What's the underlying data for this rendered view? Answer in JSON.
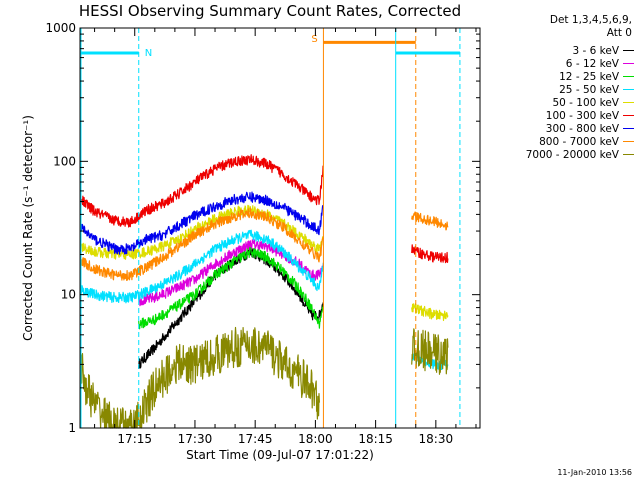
{
  "title": "HESSI Observing Summary Count Rates, Corrected",
  "footer": "11-Jan-2010 13:56",
  "legend_header": [
    "Det 1,3,4,5,6,9,",
    "Att 0"
  ],
  "chart_data": {
    "type": "line",
    "title": "HESSI Observing Summary Count Rates, Corrected",
    "xlabel": "Start Time (09-Jul-07 17:01:22)",
    "ylabel": "Corrected Count Rate (s⁻¹ detector⁻¹)",
    "y_scale": "log",
    "ylim": [
      1,
      1000
    ],
    "xlim": [
      "17:01:22",
      "18:41:00"
    ],
    "x_ticks": [
      "17:15",
      "17:30",
      "17:45",
      "18:00",
      "18:15",
      "18:30"
    ],
    "y_ticks": [
      "1",
      "10",
      "100",
      "1000"
    ],
    "grid": false,
    "legend_position": "right",
    "series": [
      {
        "name": "3 - 6 keV",
        "color": "#000000",
        "x": [
          "17:16",
          "17:20",
          "17:25",
          "17:30",
          "17:35",
          "17:40",
          "17:44",
          "17:48",
          "17:52",
          "17:56",
          "17:59",
          "18:01",
          "18:02"
        ],
        "values": [
          3,
          4,
          6,
          9,
          14,
          18,
          21,
          18,
          14,
          10,
          7,
          7,
          9
        ]
      },
      {
        "name": "6 - 12 keV",
        "color": "#dd00dd",
        "x": [
          "17:16",
          "17:20",
          "17:25",
          "17:30",
          "17:35",
          "17:40",
          "17:44",
          "17:48",
          "17:52",
          "17:56",
          "17:59",
          "18:01",
          "18:02"
        ],
        "values": [
          9,
          9.5,
          11,
          13,
          17,
          21,
          24,
          23,
          20,
          17,
          14,
          14,
          17
        ]
      },
      {
        "name": "12 - 25 keV",
        "color": "#00dd00",
        "x": [
          "17:16",
          "17:20",
          "17:25",
          "17:30",
          "17:35",
          "17:40",
          "17:44",
          "17:48",
          "17:52",
          "17:56",
          "17:59",
          "18:01",
          "18:02"
        ],
        "values": [
          6,
          6.5,
          8,
          10,
          14,
          18,
          21,
          19,
          15,
          11,
          8,
          6,
          8
        ]
      },
      {
        "name": "25 - 50 keV",
        "color": "#00e0ff",
        "x": [
          "17:01:30",
          "17:05",
          "17:10",
          "17:14",
          "17:18",
          "17:22",
          "17:26",
          "17:30",
          "17:35",
          "17:40",
          "17:44",
          "17:48",
          "17:52",
          "17:56",
          "17:59",
          "18:01",
          "18:02",
          "18:24",
          "18:27",
          "18:30",
          "18:33"
        ],
        "values": [
          11,
          10,
          9.5,
          9.5,
          10.5,
          12,
          14,
          17,
          22,
          26,
          28,
          26,
          21,
          16,
          13,
          11,
          18,
          3.5,
          3.2,
          3,
          3
        ]
      },
      {
        "name": "50 - 100 keV",
        "color": "#dddd00",
        "x": [
          "17:01:30",
          "17:05",
          "17:10",
          "17:14",
          "17:18",
          "17:22",
          "17:26",
          "17:30",
          "17:35",
          "17:40",
          "17:44",
          "17:48",
          "17:52",
          "17:56",
          "17:59",
          "18:01",
          "18:02",
          "18:24",
          "18:27",
          "18:30",
          "18:33"
        ],
        "values": [
          23,
          21,
          20,
          20,
          21,
          23,
          26,
          31,
          37,
          42,
          43,
          40,
          34,
          28,
          24,
          22,
          28,
          8,
          7.5,
          7,
          7
        ]
      },
      {
        "name": "100 - 300 keV",
        "color": "#ee0000",
        "x": [
          "17:01:30",
          "17:05",
          "17:10",
          "17:14",
          "17:18",
          "17:22",
          "17:26",
          "17:30",
          "17:35",
          "17:40",
          "17:44",
          "17:48",
          "17:52",
          "17:56",
          "17:59",
          "18:01",
          "18:02",
          "18:24",
          "18:27",
          "18:30",
          "18:33"
        ],
        "values": [
          52,
          42,
          36,
          35,
          43,
          48,
          57,
          70,
          88,
          100,
          103,
          95,
          80,
          64,
          54,
          50,
          95,
          22,
          20,
          19,
          19
        ]
      },
      {
        "name": "300 - 800 keV",
        "color": "#0000ee",
        "x": [
          "17:01:30",
          "17:05",
          "17:10",
          "17:14",
          "17:18",
          "17:22",
          "17:26",
          "17:30",
          "17:35",
          "17:40",
          "17:44",
          "17:48",
          "17:52",
          "17:56",
          "17:59",
          "18:01",
          "18:02"
        ],
        "values": [
          32,
          26,
          22,
          22,
          26,
          28,
          33,
          39,
          46,
          52,
          54,
          51,
          45,
          38,
          33,
          30,
          50
        ]
      },
      {
        "name": "800 - 7000 keV",
        "color": "#ff8800",
        "x": [
          "17:01:30",
          "17:05",
          "17:10",
          "17:14",
          "17:18",
          "17:22",
          "17:26",
          "17:30",
          "17:35",
          "17:40",
          "17:44",
          "17:48",
          "17:52",
          "17:56",
          "17:59",
          "18:01",
          "18:02",
          "18:24",
          "18:27",
          "18:30",
          "18:33"
        ],
        "values": [
          18,
          15.5,
          14,
          14,
          16,
          19,
          23,
          28,
          34,
          39,
          41,
          38,
          32,
          25,
          21,
          19,
          26,
          39,
          37,
          35,
          33
        ]
      },
      {
        "name": "7000 - 20000 keV",
        "color": "#888800",
        "x": [
          "17:01:30",
          "17:03",
          "17:05",
          "17:10",
          "17:15",
          "17:20",
          "17:25",
          "17:30",
          "17:35",
          "17:40",
          "17:44",
          "17:48",
          "17:52",
          "17:56",
          "17:59",
          "18:01",
          "18:24",
          "18:27",
          "18:30",
          "18:33"
        ],
        "values": [
          3,
          2,
          1.5,
          1,
          1,
          2,
          3,
          3,
          3.5,
          4,
          4.2,
          4,
          3,
          2.5,
          2,
          1.5,
          4,
          3.8,
          3.6,
          3.5
        ]
      }
    ],
    "annotations": [
      {
        "label": "N",
        "color": "#00e0ff",
        "x": "17:16"
      },
      {
        "label": "S",
        "color": "#ff8800",
        "x": "18:02"
      }
    ]
  }
}
